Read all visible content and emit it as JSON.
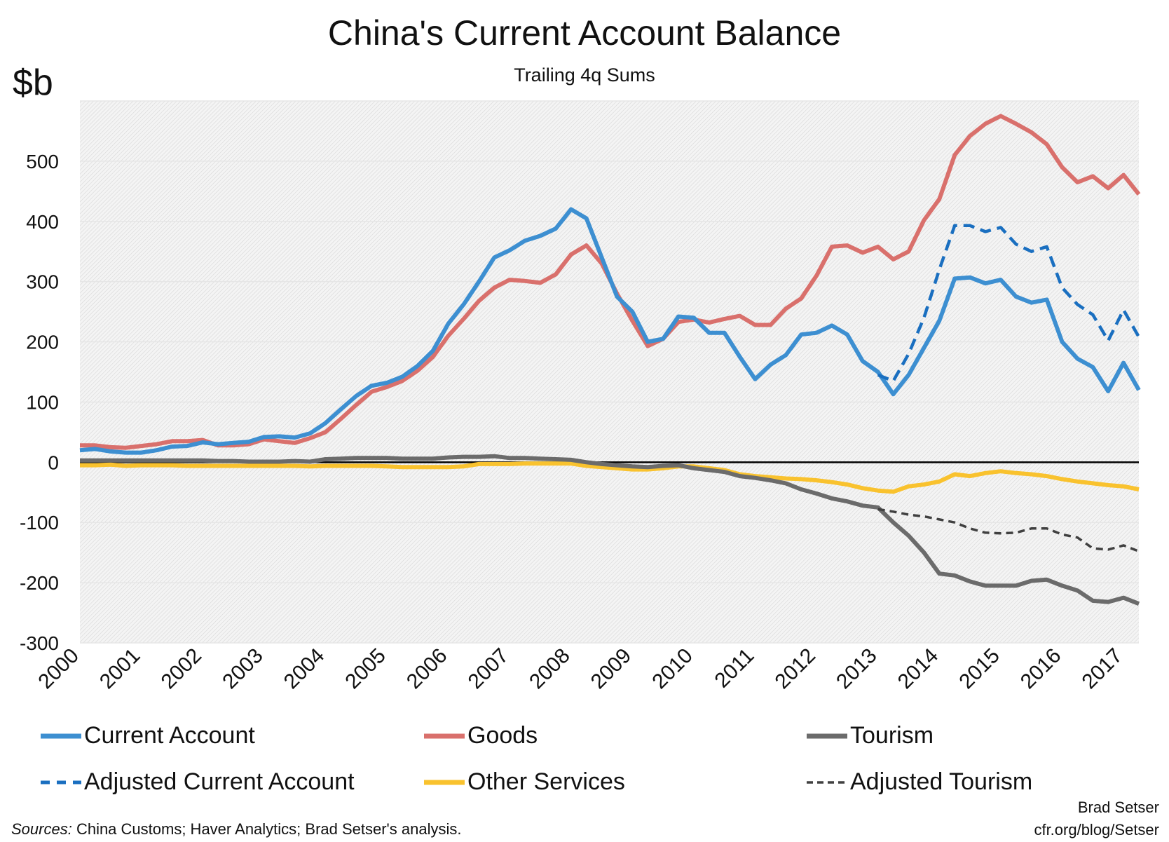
{
  "chart_data": {
    "type": "line",
    "title": "China's Current Account Balance",
    "subtitle": "Trailing 4q Sums",
    "ylabel": "$b",
    "xlabel": "",
    "ylim": [
      -300,
      600
    ],
    "yticks": [
      500,
      400,
      300,
      200,
      100,
      0,
      -100,
      -200,
      -300
    ],
    "xtick_labels": [
      "2000",
      "2001",
      "2002",
      "2003",
      "2004",
      "2005",
      "2006",
      "2007",
      "2008",
      "2009",
      "2010",
      "2011",
      "2012",
      "2013",
      "2014",
      "2015",
      "2016",
      "2017"
    ],
    "x_start": "2000Q1",
    "x_frequency": "quarterly",
    "grid": true,
    "legend_position": "bottom",
    "series": [
      {
        "name": "Current Account",
        "color": "#3d8fd1",
        "style": "solid",
        "start_index": 0,
        "values": [
          20,
          22,
          18,
          16,
          16,
          20,
          26,
          27,
          33,
          30,
          32,
          34,
          42,
          43,
          41,
          48,
          65,
          88,
          110,
          127,
          132,
          142,
          160,
          185,
          230,
          262,
          300,
          340,
          352,
          368,
          376,
          388,
          420,
          405,
          340,
          275,
          250,
          200,
          205,
          242,
          240,
          215,
          215,
          175,
          138,
          162,
          178,
          212,
          215,
          227,
          212,
          168,
          150,
          113,
          145,
          190,
          235,
          305,
          307,
          297,
          303,
          275,
          265,
          270,
          200,
          172,
          158,
          118,
          165,
          120
        ]
      },
      {
        "name": "Goods",
        "color": "#d9706c",
        "style": "solid",
        "start_index": 0,
        "values": [
          28,
          28,
          25,
          24,
          27,
          30,
          35,
          35,
          37,
          28,
          28,
          30,
          38,
          35,
          32,
          40,
          50,
          72,
          95,
          117,
          125,
          135,
          152,
          175,
          210,
          238,
          268,
          290,
          303,
          301,
          298,
          312,
          345,
          360,
          330,
          280,
          235,
          193,
          205,
          233,
          237,
          232,
          238,
          243,
          228,
          228,
          255,
          272,
          310,
          358,
          360,
          348,
          358,
          337,
          350,
          402,
          437,
          510,
          542,
          562,
          575,
          562,
          548,
          528,
          490,
          465,
          475,
          455,
          477,
          445
        ]
      },
      {
        "name": "Tourism",
        "color": "#6b6b6b",
        "style": "solid",
        "start_index": 0,
        "values": [
          3,
          3,
          3,
          3,
          3,
          3,
          3,
          3,
          3,
          2,
          2,
          1,
          1,
          1,
          2,
          1,
          5,
          6,
          7,
          7,
          7,
          6,
          6,
          6,
          8,
          9,
          9,
          10,
          7,
          7,
          6,
          5,
          4,
          0,
          -3,
          -5,
          -7,
          -8,
          -6,
          -5,
          -10,
          -13,
          -16,
          -23,
          -26,
          -30,
          -35,
          -45,
          -52,
          -60,
          -65,
          -72,
          -75,
          -100,
          -122,
          -150,
          -185,
          -188,
          -198,
          -205,
          -205,
          -205,
          -197,
          -195,
          -205,
          -213,
          -230,
          -232,
          -225,
          -235
        ]
      },
      {
        "name": "Adjusted Current Account",
        "color": "#1a6fc0",
        "style": "dashed",
        "start_index": 52,
        "values": [
          145,
          135,
          180,
          240,
          320,
          393,
          393,
          383,
          390,
          362,
          350,
          358,
          290,
          262,
          245,
          202,
          253,
          208
        ]
      },
      {
        "name": "Other Services",
        "color": "#f9c22e",
        "style": "solid",
        "start_index": 0,
        "values": [
          -5,
          -5,
          -4,
          -6,
          -5,
          -5,
          -5,
          -6,
          -6,
          -6,
          -6,
          -6,
          -6,
          -6,
          -6,
          -7,
          -6,
          -6,
          -6,
          -6,
          -7,
          -8,
          -8,
          -8,
          -8,
          -7,
          -3,
          -3,
          -3,
          -2,
          -2,
          -2,
          -2,
          -6,
          -8,
          -10,
          -12,
          -12,
          -10,
          -7,
          -7,
          -10,
          -13,
          -20,
          -23,
          -25,
          -27,
          -28,
          -30,
          -33,
          -37,
          -43,
          -47,
          -49,
          -40,
          -37,
          -32,
          -20,
          -23,
          -18,
          -15,
          -18,
          -20,
          -23,
          -28,
          -32,
          -35,
          -38,
          -40,
          -45
        ]
      },
      {
        "name": "Adjusted Tourism",
        "color": "#404040",
        "style": "dashed",
        "start_index": 52,
        "values": [
          -78,
          -82,
          -87,
          -90,
          -95,
          -100,
          -110,
          -117,
          -118,
          -117,
          -110,
          -110,
          -120,
          -125,
          -143,
          -145,
          -138,
          -148
        ]
      }
    ]
  },
  "footer": {
    "sources_label": "Sources:",
    "sources_text": " China Customs; Haver Analytics; Brad Setser's analysis.",
    "author": "Brad Setser",
    "url": "cfr.org/blog/Setser"
  }
}
